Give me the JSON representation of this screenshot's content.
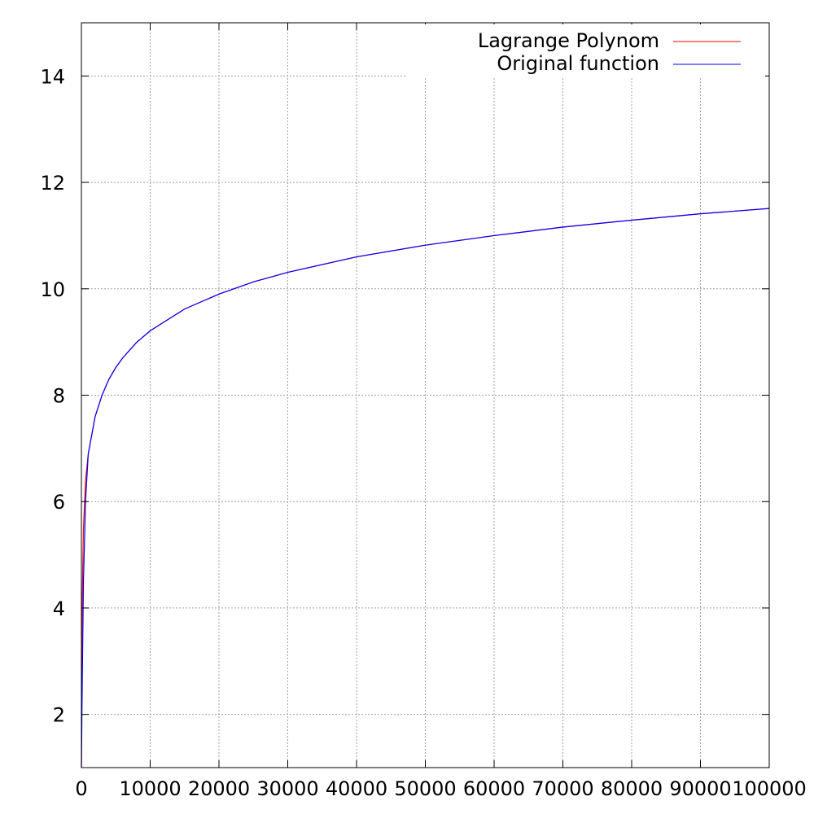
{
  "chart_data": {
    "type": "line",
    "title": "",
    "xlabel": "",
    "ylabel": "",
    "xlim": [
      0,
      100000
    ],
    "ylim": [
      1,
      15
    ],
    "grid": true,
    "legend_position": "top-right",
    "x_ticks": [
      0,
      10000,
      20000,
      30000,
      40000,
      50000,
      60000,
      70000,
      80000,
      90000,
      100000
    ],
    "x_tick_labels": [
      "0",
      "10000",
      "20000",
      "30000",
      "40000",
      "50000",
      "60000",
      "70000",
      "80000",
      "90000",
      "100000"
    ],
    "y_ticks": [
      2,
      4,
      6,
      8,
      10,
      12,
      14
    ],
    "y_tick_labels": [
      "2",
      "4",
      "6",
      "8",
      "10",
      "12",
      "14"
    ],
    "series": [
      {
        "name": "Lagrange Polynom",
        "color": "#ff0000",
        "x": [
          0,
          100,
          300,
          600,
          1000,
          2000,
          3000,
          4000,
          5000,
          6000,
          8000,
          10000,
          15000,
          20000,
          25000,
          30000,
          40000,
          50000,
          60000,
          70000,
          80000,
          90000,
          100000
        ],
        "y": [
          1.0,
          4.0,
          5.5,
          6.4,
          6.9,
          7.6,
          8.0,
          8.3,
          8.52,
          8.7,
          8.99,
          9.21,
          9.62,
          9.9,
          10.13,
          10.31,
          10.6,
          10.82,
          11.0,
          11.16,
          11.29,
          11.41,
          11.51
        ]
      },
      {
        "name": "Original function",
        "color": "#0000ff",
        "x": [
          0,
          100,
          300,
          600,
          1000,
          2000,
          3000,
          4000,
          5000,
          6000,
          8000,
          10000,
          15000,
          20000,
          25000,
          30000,
          40000,
          50000,
          60000,
          70000,
          80000,
          90000,
          100000
        ],
        "y": [
          1.0,
          2.3,
          4.5,
          6.0,
          6.9,
          7.6,
          8.0,
          8.3,
          8.52,
          8.7,
          8.99,
          9.21,
          9.62,
          9.9,
          10.13,
          10.31,
          10.6,
          10.82,
          11.0,
          11.16,
          11.29,
          11.41,
          11.51
        ]
      }
    ]
  }
}
